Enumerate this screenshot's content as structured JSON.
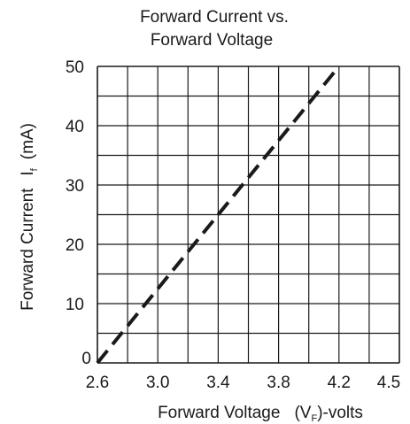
{
  "chart_data": {
    "type": "line",
    "title_lines": [
      "Forward Current vs.",
      "Forward Voltage"
    ],
    "xlabel": "Forward Voltage",
    "xlabel_symbol": {
      "base": "V",
      "sub": "F",
      "suffix": ")-volts",
      "prefix": "("
    },
    "ylabel": "Forward Current",
    "ylabel_symbol": {
      "base": "I",
      "sub": "f",
      "unit": "(mA)"
    },
    "x_tick_labels": [
      "2.6",
      "3.0",
      "3.4",
      "3.8",
      "4.2",
      "4.5"
    ],
    "y_tick_labels": [
      "0",
      "10",
      "20",
      "30",
      "40",
      "50"
    ],
    "ylim": [
      0,
      50
    ],
    "grid": true,
    "series": [
      {
        "style": "dashed",
        "color": "#1a1a1a",
        "points": [
          {
            "x": 2.6,
            "y": 0
          },
          {
            "x": 4.2,
            "y": 50
          }
        ]
      }
    ]
  }
}
